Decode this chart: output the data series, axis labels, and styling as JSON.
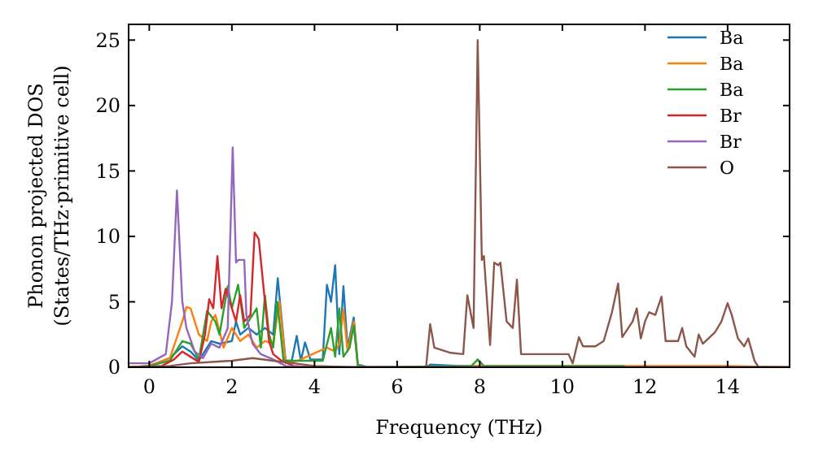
{
  "chart_data": {
    "type": "line",
    "xlabel": "Frequency (THz)",
    "ylabel": "Phonon projected DOS\n(States/THz·primitive cell)",
    "xlim": [
      -0.5,
      15.5
    ],
    "ylim": [
      0,
      26.2
    ],
    "xticks": [
      0,
      2,
      4,
      6,
      8,
      10,
      12,
      14
    ],
    "yticks": [
      0,
      5,
      10,
      15,
      20,
      25
    ],
    "grid": false,
    "legend": "top right",
    "marker": "none",
    "line_style": "solid",
    "series": [
      {
        "name": "Ba",
        "color": "#1f77b4",
        "x": [
          -0.5,
          0,
          0.5,
          0.8,
          1.0,
          1.2,
          1.5,
          1.7,
          2.0,
          2.1,
          2.2,
          2.4,
          2.6,
          2.8,
          3.0,
          3.11,
          3.3,
          3.45,
          3.57,
          3.67,
          3.77,
          3.9,
          4.2,
          4.3,
          4.4,
          4.5,
          4.6,
          4.7,
          4.8,
          4.95,
          5.05,
          5.3,
          6.7,
          6.8,
          7.5,
          8.0
        ],
        "values": [
          0,
          0.1,
          0.7,
          1.6,
          1.2,
          0.5,
          2,
          1.8,
          2.0,
          3.5,
          2.5,
          3,
          2.5,
          3,
          2.5,
          6.8,
          0.5,
          0.5,
          2.4,
          0.5,
          1.9,
          0.6,
          0.6,
          6.3,
          5,
          7.8,
          1.0,
          6.2,
          1.5,
          3.8,
          0.2,
          0,
          0,
          0.2,
          0.1,
          0.1
        ]
      },
      {
        "name": "Ba",
        "color": "#ff7f0e",
        "x": [
          -0.5,
          0,
          0.5,
          0.8,
          0.9,
          1.0,
          1.2,
          1.4,
          1.5,
          1.6,
          1.8,
          2.0,
          2.2,
          2.4,
          2.6,
          2.8,
          3.0,
          3.15,
          3.3,
          3.6,
          4.3,
          4.5,
          4.6,
          4.7,
          4.8,
          4.95,
          5.05,
          5.3,
          6.7,
          8.0,
          10.5,
          14.0,
          15.5
        ],
        "values": [
          0,
          0.1,
          0.7,
          3.5,
          4.6,
          4.5,
          2.5,
          2,
          3.5,
          4,
          1.5,
          3,
          2,
          2.5,
          1.5,
          2,
          1.8,
          5,
          0.3,
          0.5,
          1.5,
          1.2,
          1.8,
          4.4,
          1.2,
          3.5,
          0.1,
          0,
          0,
          0.1,
          0.1,
          0.1,
          0
        ]
      },
      {
        "name": "Ba",
        "color": "#2ca02c",
        "x": [
          -0.5,
          0,
          0.5,
          0.8,
          1.0,
          1.2,
          1.4,
          1.6,
          1.7,
          1.9,
          2.0,
          2.15,
          2.3,
          2.5,
          2.6,
          2.7,
          2.8,
          2.9,
          3.0,
          3.1,
          3.25,
          3.6,
          4.2,
          4.4,
          4.5,
          4.6,
          4.7,
          4.85,
          4.95,
          5.05,
          5.3,
          7.8,
          7.95,
          8.1,
          9.0,
          11.5
        ],
        "values": [
          0,
          0.1,
          0.5,
          2.0,
          1.8,
          0.6,
          4.3,
          3.5,
          2.5,
          6.2,
          4.5,
          6.3,
          3,
          4,
          4.5,
          1.5,
          5.5,
          2.5,
          1.5,
          5,
          0.5,
          0.5,
          0.5,
          3,
          0.8,
          4.5,
          0.8,
          1.5,
          3.2,
          0.1,
          0,
          0.1,
          0.6,
          0.1,
          0.1,
          0.1
        ]
      },
      {
        "name": "Br",
        "color": "#d62728",
        "x": [
          -0.5,
          0.3,
          0.6,
          0.8,
          1.0,
          1.2,
          1.35,
          1.45,
          1.55,
          1.65,
          1.75,
          1.85,
          1.95,
          2.1,
          2.2,
          2.3,
          2.45,
          2.55,
          2.65,
          2.8,
          2.9,
          3.0,
          3.2,
          3.5,
          4.0,
          5.0,
          15.5
        ],
        "values": [
          0,
          0.1,
          0.6,
          1.2,
          0.8,
          0.4,
          2.5,
          5.2,
          4.5,
          8.5,
          4.5,
          6,
          5,
          3.5,
          5.5,
          3.5,
          4,
          10.3,
          9.8,
          5,
          2,
          1,
          0.5,
          0.1,
          0,
          0,
          0
        ]
      },
      {
        "name": "Br",
        "color": "#9467bd",
        "x": [
          -0.5,
          0,
          0.4,
          0.55,
          0.67,
          0.8,
          0.9,
          1.1,
          1.3,
          1.5,
          1.7,
          1.9,
          2.02,
          2.1,
          2.15,
          2.3,
          2.35,
          2.5,
          2.7,
          3.0,
          3.3,
          4.0,
          15.5
        ],
        "values": [
          0.3,
          0.3,
          1,
          5,
          13.5,
          5,
          3,
          1.2,
          0.7,
          1.8,
          1.5,
          3,
          16.8,
          8,
          8.2,
          8.2,
          4,
          1.8,
          1.0,
          0.6,
          0.1,
          0,
          0
        ]
      },
      {
        "name": "O",
        "color": "#8c564b",
        "x": [
          -0.5,
          0.5,
          1.0,
          1.5,
          2.0,
          2.5,
          3.0,
          3.5,
          4.0,
          5.0,
          6.7,
          6.8,
          6.9,
          7.3,
          7.6,
          7.7,
          7.85,
          7.95,
          8.05,
          8.1,
          8.25,
          8.35,
          8.45,
          8.5,
          8.65,
          8.8,
          8.9,
          9.0,
          10.0,
          10.15,
          10.25,
          10.4,
          10.5,
          10.8,
          11.0,
          11.2,
          11.35,
          11.45,
          11.7,
          11.8,
          11.9,
          12.0,
          12.1,
          12.25,
          12.4,
          12.5,
          12.8,
          12.9,
          13.0,
          13.2,
          13.3,
          13.4,
          13.7,
          13.85,
          14.0,
          14.1,
          14.25,
          14.4,
          14.5,
          14.65,
          14.75,
          15.5
        ],
        "values": [
          0,
          0.1,
          0.3,
          0.4,
          0.5,
          0.7,
          0.5,
          0.3,
          0.1,
          0,
          0,
          3.3,
          1.5,
          1.1,
          1.0,
          5.5,
          3.0,
          25,
          8.2,
          8.5,
          1.7,
          8.0,
          7.8,
          8.0,
          3.5,
          3.0,
          6.7,
          1.0,
          1.0,
          1.0,
          0.3,
          2.3,
          1.6,
          1.6,
          2.0,
          4.2,
          6.4,
          2.3,
          3.5,
          4.5,
          2.2,
          3.5,
          4.2,
          4.0,
          5.4,
          2.0,
          2.0,
          3.0,
          1.6,
          0.8,
          2.5,
          1.8,
          2.7,
          3.5,
          4.9,
          4.0,
          2.2,
          1.6,
          2.2,
          0.5,
          0,
          0
        ]
      }
    ]
  }
}
